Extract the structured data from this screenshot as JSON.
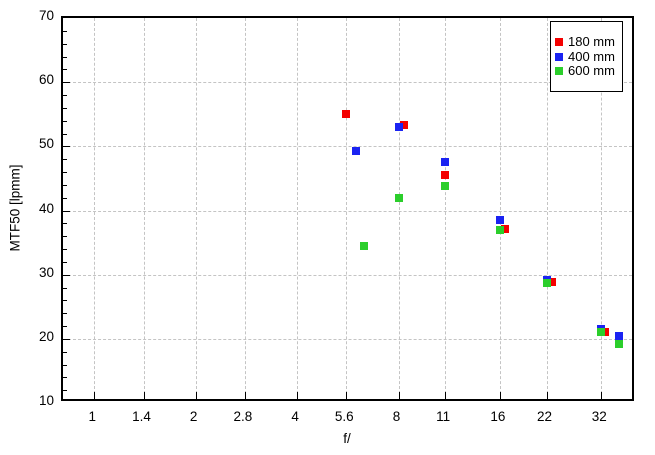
{
  "chart_data": {
    "type": "scatter",
    "title": "",
    "xlabel": "f/",
    "ylabel": "MTF50 [lpmm]",
    "x_scale": "log",
    "x_tick_labels": [
      "1",
      "1.4",
      "2",
      "2.8",
      "4",
      "5.6",
      "8",
      "11",
      "16",
      "22",
      "32"
    ],
    "x_ticks": [
      1,
      1.4,
      2,
      2.8,
      4,
      5.6,
      8,
      11,
      16,
      22,
      32
    ],
    "x_range": [
      0.81,
      40.5
    ],
    "ylim": [
      10,
      70
    ],
    "y_tick_labels": [
      "10",
      "20",
      "30",
      "40",
      "50",
      "60",
      "70"
    ],
    "y_major_step": 10,
    "y_minor_step": 2,
    "grid": "dashed-major",
    "marker": "square",
    "legend_position": "top-right-inside",
    "series": [
      {
        "name": "180 mm",
        "color": "#f40000",
        "points": [
          {
            "f": 5.6,
            "mtf": 55.0
          },
          {
            "f": 8,
            "mtf": 53.3,
            "dx": 5
          },
          {
            "f": 11,
            "mtf": 45.6
          },
          {
            "f": 16,
            "mtf": 37.1,
            "dx": 5
          },
          {
            "f": 22,
            "mtf": 28.8,
            "dx": 5
          },
          {
            "f": 32,
            "mtf": 21.1,
            "dx": 4
          }
        ]
      },
      {
        "name": "400 mm",
        "color": "#1a23f2",
        "points": [
          {
            "f": 6,
            "mtf": 49.3
          },
          {
            "f": 8,
            "mtf": 53.0
          },
          {
            "f": 11,
            "mtf": 47.6
          },
          {
            "f": 16,
            "mtf": 38.5
          },
          {
            "f": 22,
            "mtf": 29.2
          },
          {
            "f": 32,
            "mtf": 21.6
          },
          {
            "f": 36,
            "mtf": 20.4
          }
        ]
      },
      {
        "name": "600 mm",
        "color": "#2bce2b",
        "points": [
          {
            "f": 6.3,
            "mtf": 34.5
          },
          {
            "f": 8,
            "mtf": 42.0
          },
          {
            "f": 11,
            "mtf": 43.9
          },
          {
            "f": 16,
            "mtf": 37.0
          },
          {
            "f": 22,
            "mtf": 28.7
          },
          {
            "f": 32,
            "mtf": 21.0
          },
          {
            "f": 36,
            "mtf": 19.2
          }
        ]
      }
    ],
    "colors": {
      "grid": "#c4c4c4",
      "axis": "#000000",
      "background": "#ffffff"
    }
  }
}
